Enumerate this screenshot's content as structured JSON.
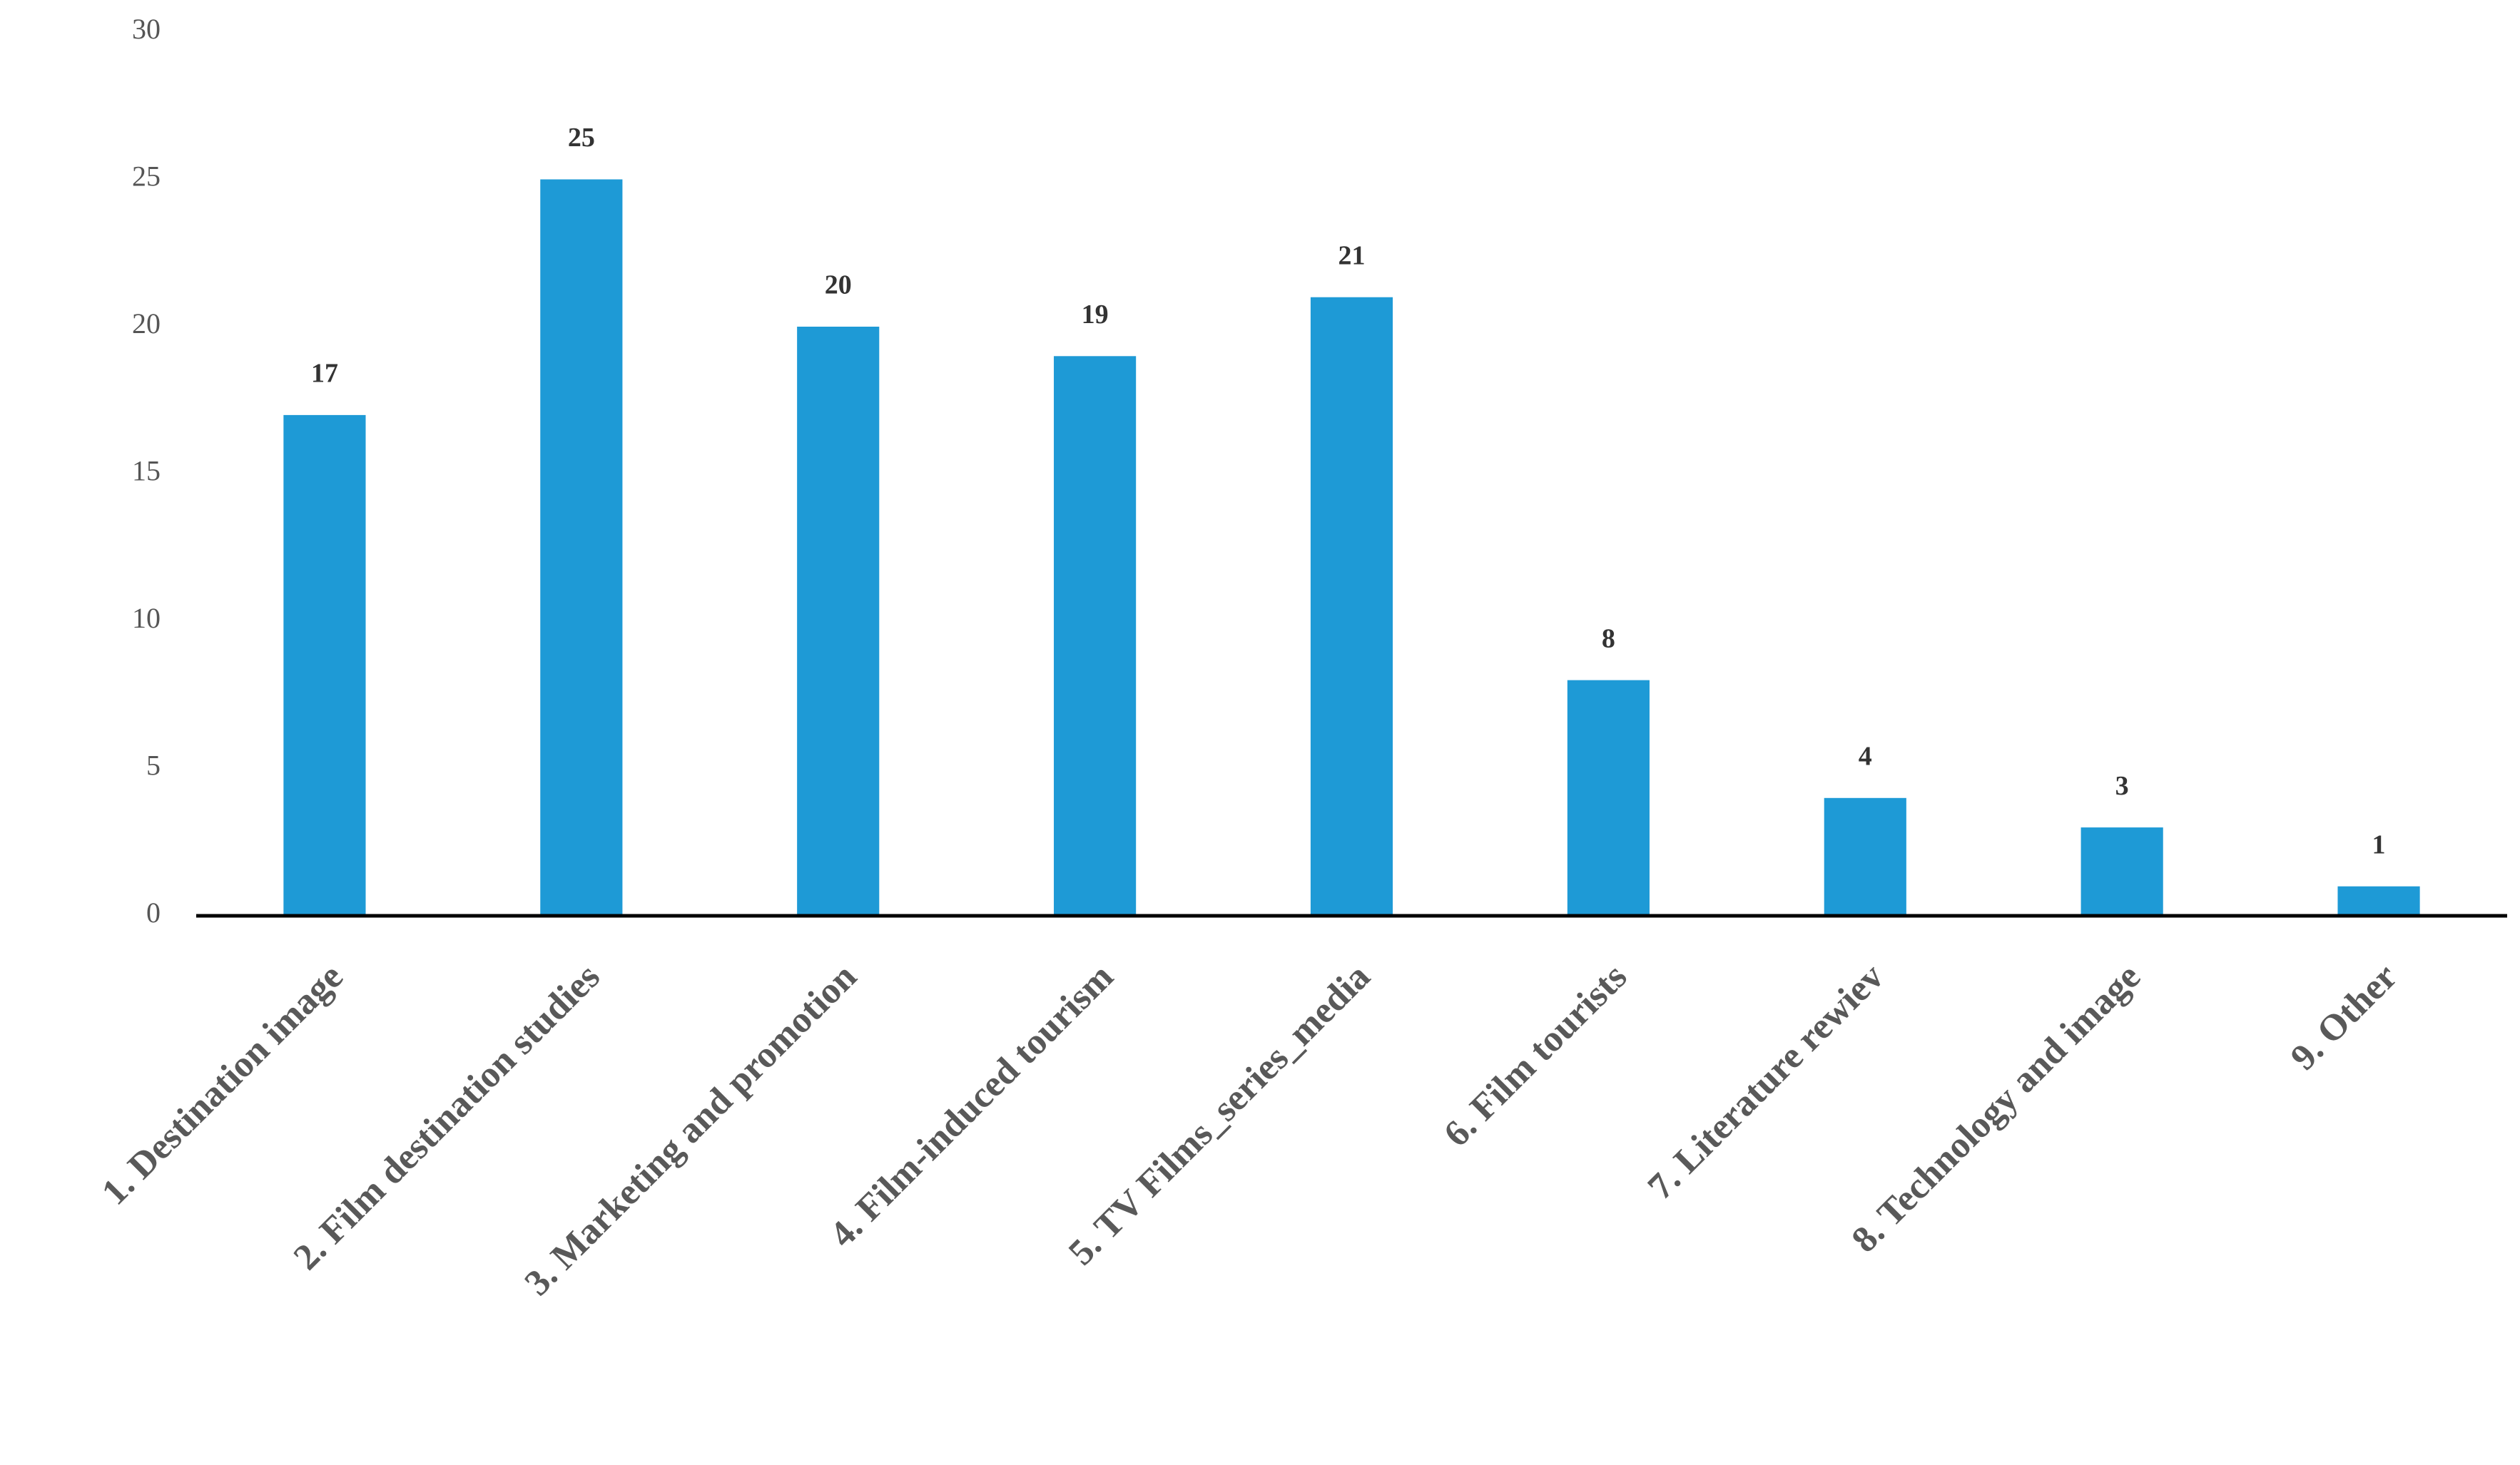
{
  "chart_data": {
    "type": "bar",
    "categories": [
      "1. Destination image",
      "2. Film destination studies",
      "3. Marketing and promotion",
      "4. Film-induced tourism",
      "5. TV Films_series_media",
      "6. Film tourists",
      "7. Literature rewiev",
      "8. Technology and image",
      "9. Other"
    ],
    "values": [
      17,
      25,
      20,
      19,
      21,
      8,
      4,
      3,
      1
    ],
    "color": "#1e9ad6",
    "ylim": [
      0,
      30
    ],
    "yticks": [
      0,
      5,
      10,
      15,
      20,
      25,
      30
    ],
    "grid": false
  }
}
